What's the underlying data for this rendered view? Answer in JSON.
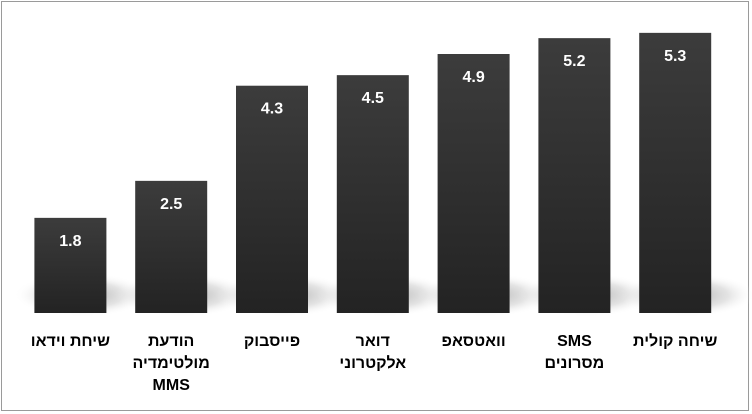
{
  "chart_data": {
    "type": "bar",
    "title": "",
    "xlabel": "",
    "ylabel": "",
    "ylim": [
      0,
      5.6
    ],
    "grid": false,
    "legend": "none",
    "categories": [
      [
        "שיחת וידאו"
      ],
      [
        "הודעת",
        "מולטימדיה",
        "MMS"
      ],
      [
        "פייסבוק"
      ],
      [
        "דואר",
        "אלקטרוני"
      ],
      [
        "וואטסאפ"
      ],
      [
        "SMS",
        "מסרונים"
      ],
      [
        "שיחה קולית"
      ]
    ],
    "values": [
      1.8,
      2.5,
      4.3,
      4.5,
      4.9,
      5.2,
      5.3
    ],
    "colors": {
      "bar_top": "#3c3c3c",
      "bar_bottom": "#232323",
      "label": "#ffffff",
      "category": "#000000"
    }
  }
}
